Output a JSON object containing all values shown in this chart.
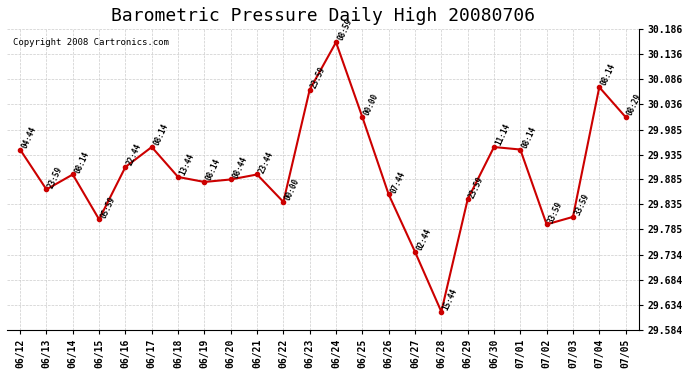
{
  "title": "Barometric Pressure Daily High 20080706",
  "copyright": "Copyright 2008 Cartronics.com",
  "dates": [
    "06/12",
    "06/13",
    "06/14",
    "06/15",
    "06/16",
    "06/17",
    "06/18",
    "06/19",
    "06/20",
    "06/21",
    "06/22",
    "06/23",
    "06/24",
    "06/25",
    "06/26",
    "06/27",
    "06/28",
    "06/29",
    "06/30",
    "07/01",
    "07/02",
    "07/03",
    "07/04",
    "07/05"
  ],
  "values": [
    29.945,
    29.865,
    29.895,
    29.805,
    29.91,
    29.95,
    29.89,
    29.88,
    29.885,
    29.895,
    29.84,
    30.065,
    30.16,
    30.01,
    29.855,
    29.74,
    29.62,
    29.845,
    29.95,
    29.945,
    29.795,
    29.81,
    30.07,
    30.01
  ],
  "time_labels": [
    "04:44",
    "23:59",
    "08:14",
    "05:59",
    "22:44",
    "08:14",
    "13:44",
    "08:14",
    "08:44",
    "23:44",
    "00:00",
    "23:59",
    "08:59",
    "00:00",
    "07:44",
    "02:44",
    "15:44",
    "23:59",
    "11:14",
    "08:14",
    "33:59",
    "33:59",
    "08:14",
    "08:29"
  ],
  "ylim": [
    29.584,
    30.186
  ],
  "yticks": [
    29.584,
    29.634,
    29.684,
    29.734,
    29.785,
    29.835,
    29.885,
    29.935,
    29.985,
    30.036,
    30.086,
    30.136,
    30.186
  ],
  "line_color": "#cc0000",
  "marker_color": "#cc0000",
  "bg_color": "#ffffff",
  "grid_color": "#cccccc",
  "title_fontsize": 13,
  "label_fontsize": 7.5
}
